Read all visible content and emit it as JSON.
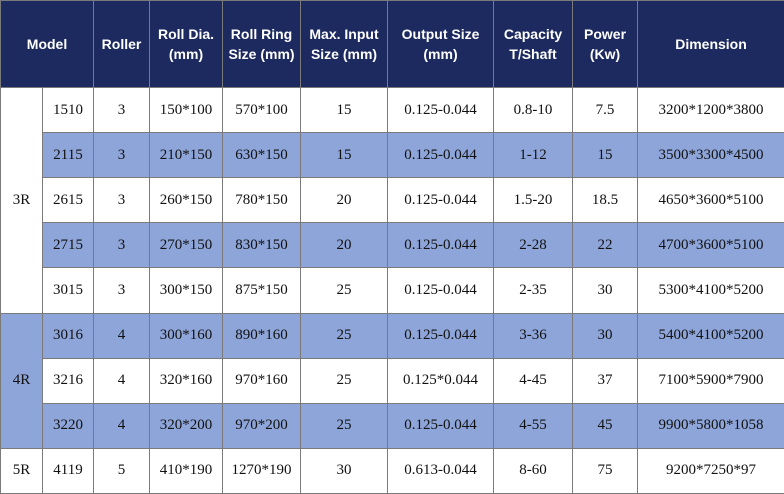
{
  "table": {
    "header": [
      [
        "Model"
      ],
      [
        "Roller"
      ],
      [
        "Roll Dia.",
        "(mm)"
      ],
      [
        "Roll Ring",
        "Size (mm)"
      ],
      [
        "Max. Input",
        "Size (mm)"
      ],
      [
        "Output Size",
        "(mm)"
      ],
      [
        "Capacity",
        "T/Shaft"
      ],
      [
        "Power",
        "(Kw)"
      ],
      [
        "Dimension"
      ]
    ],
    "groups": [
      {
        "label": "3R",
        "rows": [
          [
            "1510",
            "3",
            "150*100",
            "570*100",
            "15",
            "0.125-0.044",
            "0.8-10",
            "7.5",
            "3200*1200*3800"
          ],
          [
            "2115",
            "3",
            "210*150",
            "630*150",
            "15",
            "0.125-0.044",
            "1-12",
            "15",
            "3500*3300*4500"
          ],
          [
            "2615",
            "3",
            "260*150",
            "780*150",
            "20",
            "0.125-0.044",
            "1.5-20",
            "18.5",
            "4650*3600*5100"
          ],
          [
            "2715",
            "3",
            "270*150",
            "830*150",
            "20",
            "0.125-0.044",
            "2-28",
            "22",
            "4700*3600*5100"
          ],
          [
            "3015",
            "3",
            "300*150",
            "875*150",
            "25",
            "0.125-0.044",
            "2-35",
            "30",
            "5300*4100*5200"
          ]
        ]
      },
      {
        "label": "4R",
        "rows": [
          [
            "3016",
            "4",
            "300*160",
            "890*160",
            "25",
            "0.125-0.044",
            "3-36",
            "30",
            "5400*4100*5200"
          ],
          [
            "3216",
            "4",
            "320*160",
            "970*160",
            "25",
            "0.125*0.044",
            "4-45",
            "37",
            "7100*5900*7900"
          ],
          [
            "3220",
            "4",
            "320*200",
            "970*200",
            "25",
            "0.125-0.044",
            "4-55",
            "45",
            "9900*5800*1058"
          ]
        ]
      },
      {
        "label": "5R",
        "rows": [
          [
            "4119",
            "5",
            "410*190",
            "1270*190",
            "30",
            "0.613-0.044",
            "8-60",
            "75",
            "9200*7250*97"
          ]
        ]
      }
    ]
  }
}
